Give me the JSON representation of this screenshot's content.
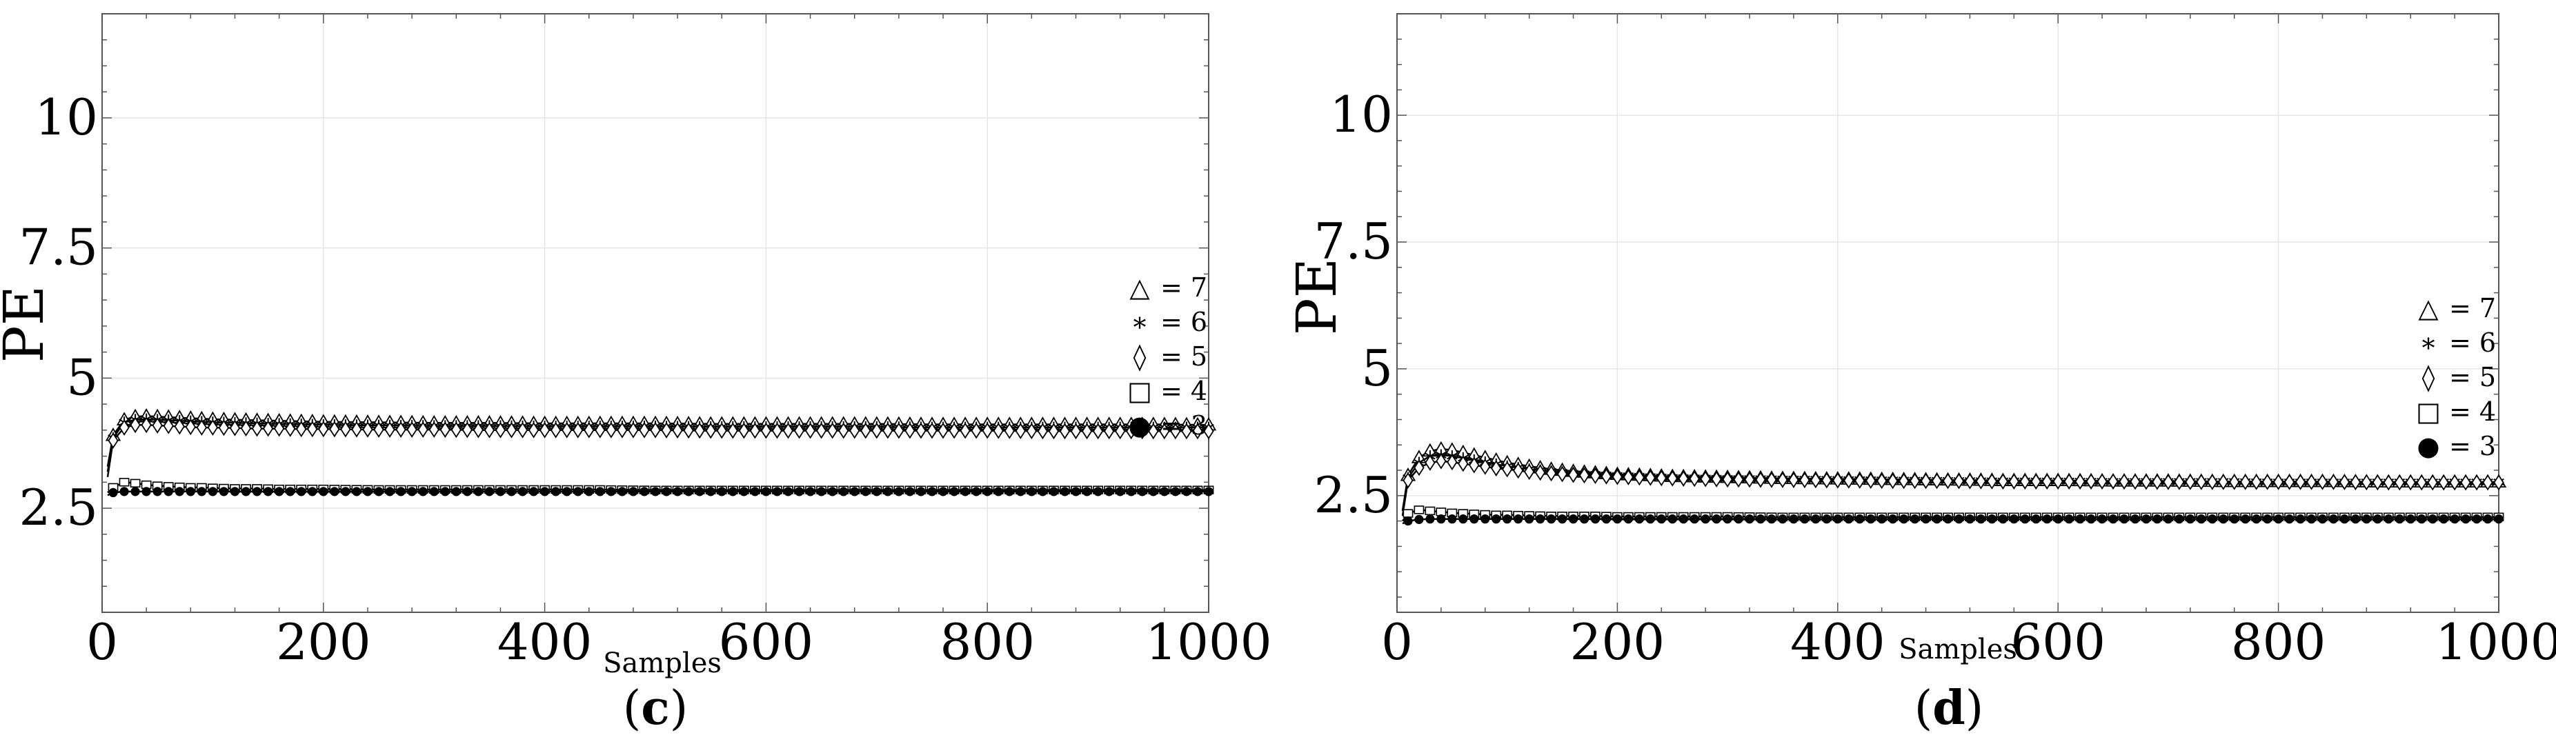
{
  "chart_data": [
    {
      "type": "line",
      "panel_label_open": "(",
      "panel_label_letter": "c",
      "panel_label_close": ")",
      "xlabel": "Samples",
      "ylabel": "PE",
      "xlim": [
        0,
        1000
      ],
      "ylim": [
        0.5,
        12
      ],
      "x_ticks": [
        0,
        200,
        400,
        600,
        800,
        1000
      ],
      "y_ticks": [
        2.5,
        5,
        7.5,
        10
      ],
      "grid": true,
      "legend_position": "right",
      "x": [
        5,
        10,
        20,
        30,
        40,
        50,
        60,
        70,
        80,
        90,
        100,
        120,
        140,
        160,
        180,
        200,
        250,
        300,
        350,
        400,
        450,
        500,
        550,
        600,
        650,
        700,
        750,
        800,
        850,
        900,
        950,
        1000
      ],
      "series": [
        {
          "name": "7",
          "marker": "triangle",
          "values": [
            3.3,
            3.9,
            4.2,
            4.26,
            4.27,
            4.26,
            4.25,
            4.24,
            4.23,
            4.22,
            4.21,
            4.2,
            4.19,
            4.18,
            4.17,
            4.16,
            4.15,
            4.14,
            4.14,
            4.13,
            4.13,
            4.13,
            4.12,
            4.12,
            4.12,
            4.12,
            4.11,
            4.11,
            4.11,
            4.11,
            4.11,
            4.1
          ]
        },
        {
          "name": "6",
          "marker": "asterisk",
          "values": [
            3.2,
            3.85,
            4.15,
            4.2,
            4.21,
            4.2,
            4.19,
            4.18,
            4.17,
            4.16,
            4.15,
            4.14,
            4.13,
            4.12,
            4.11,
            4.1,
            4.09,
            4.08,
            4.08,
            4.07,
            4.07,
            4.07,
            4.06,
            4.06,
            4.06,
            4.06,
            4.05,
            4.05,
            4.05,
            4.05,
            4.05,
            4.05
          ]
        },
        {
          "name": "5",
          "marker": "diamond",
          "values": [
            3.1,
            3.8,
            4.05,
            4.1,
            4.1,
            4.09,
            4.08,
            4.07,
            4.06,
            4.05,
            4.05,
            4.04,
            4.03,
            4.03,
            4.02,
            4.02,
            4.01,
            4.01,
            4.0,
            4.0,
            4.0,
            4.0,
            3.99,
            3.99,
            3.99,
            3.99,
            3.99,
            3.99,
            3.98,
            3.98,
            3.98,
            3.98
          ]
        },
        {
          "name": "4",
          "marker": "square",
          "values": [
            2.8,
            2.9,
            3.0,
            2.98,
            2.95,
            2.93,
            2.92,
            2.91,
            2.9,
            2.9,
            2.89,
            2.88,
            2.88,
            2.87,
            2.87,
            2.87,
            2.86,
            2.86,
            2.86,
            2.86,
            2.86,
            2.85,
            2.85,
            2.85,
            2.85,
            2.85,
            2.85,
            2.85,
            2.85,
            2.85,
            2.85,
            2.85
          ]
        },
        {
          "name": "3",
          "marker": "circle",
          "values": [
            2.75,
            2.8,
            2.82,
            2.82,
            2.82,
            2.82,
            2.82,
            2.82,
            2.82,
            2.82,
            2.82,
            2.82,
            2.82,
            2.82,
            2.82,
            2.82,
            2.82,
            2.82,
            2.82,
            2.82,
            2.82,
            2.82,
            2.82,
            2.82,
            2.82,
            2.82,
            2.82,
            2.82,
            2.82,
            2.82,
            2.82,
            2.82
          ]
        }
      ]
    },
    {
      "type": "line",
      "panel_label_open": "(",
      "panel_label_letter": "d",
      "panel_label_close": ")",
      "xlabel": "Samples",
      "ylabel": "PE",
      "xlim": [
        0,
        1000
      ],
      "ylim": [
        0.2,
        12
      ],
      "x_ticks": [
        0,
        200,
        400,
        600,
        800,
        1000
      ],
      "y_ticks": [
        2.5,
        5,
        7.5,
        10
      ],
      "grid": true,
      "legend_position": "right",
      "x": [
        5,
        10,
        20,
        30,
        40,
        50,
        60,
        70,
        80,
        90,
        100,
        120,
        140,
        160,
        180,
        200,
        250,
        300,
        350,
        400,
        450,
        500,
        550,
        600,
        650,
        700,
        750,
        800,
        850,
        900,
        950,
        1000
      ],
      "series": [
        {
          "name": "7",
          "marker": "triangle",
          "values": [
            2.2,
            2.9,
            3.25,
            3.38,
            3.42,
            3.4,
            3.35,
            3.3,
            3.25,
            3.2,
            3.15,
            3.08,
            3.02,
            2.98,
            2.95,
            2.92,
            2.88,
            2.86,
            2.84,
            2.83,
            2.82,
            2.81,
            2.8,
            2.8,
            2.79,
            2.79,
            2.78,
            2.78,
            2.78,
            2.77,
            2.77,
            2.77
          ]
        },
        {
          "name": "6",
          "marker": "asterisk",
          "values": [
            2.2,
            2.85,
            3.15,
            3.28,
            3.3,
            3.28,
            3.24,
            3.2,
            3.16,
            3.12,
            3.08,
            3.02,
            2.98,
            2.94,
            2.92,
            2.9,
            2.86,
            2.84,
            2.83,
            2.82,
            2.81,
            2.8,
            2.79,
            2.79,
            2.78,
            2.78,
            2.78,
            2.77,
            2.77,
            2.77,
            2.77,
            2.77
          ]
        },
        {
          "name": "5",
          "marker": "diamond",
          "values": [
            2.1,
            2.8,
            3.05,
            3.15,
            3.18,
            3.16,
            3.13,
            3.1,
            3.07,
            3.04,
            3.02,
            2.97,
            2.94,
            2.91,
            2.89,
            2.87,
            2.84,
            2.82,
            2.81,
            2.8,
            2.79,
            2.79,
            2.78,
            2.78,
            2.78,
            2.77,
            2.77,
            2.77,
            2.77,
            2.76,
            2.76,
            2.76
          ]
        },
        {
          "name": "4",
          "marker": "square",
          "values": [
            2.0,
            2.15,
            2.22,
            2.2,
            2.18,
            2.16,
            2.15,
            2.14,
            2.13,
            2.12,
            2.12,
            2.11,
            2.1,
            2.1,
            2.1,
            2.09,
            2.09,
            2.09,
            2.08,
            2.08,
            2.08,
            2.08,
            2.08,
            2.08,
            2.08,
            2.08,
            2.08,
            2.08,
            2.08,
            2.08,
            2.08,
            2.08
          ]
        },
        {
          "name": "3",
          "marker": "circle",
          "values": [
            1.95,
            2.0,
            2.03,
            2.04,
            2.04,
            2.04,
            2.04,
            2.04,
            2.04,
            2.04,
            2.04,
            2.04,
            2.04,
            2.04,
            2.04,
            2.04,
            2.04,
            2.04,
            2.04,
            2.04,
            2.04,
            2.04,
            2.04,
            2.04,
            2.04,
            2.04,
            2.04,
            2.04,
            2.04,
            2.04,
            2.04,
            2.04
          ]
        }
      ]
    }
  ]
}
